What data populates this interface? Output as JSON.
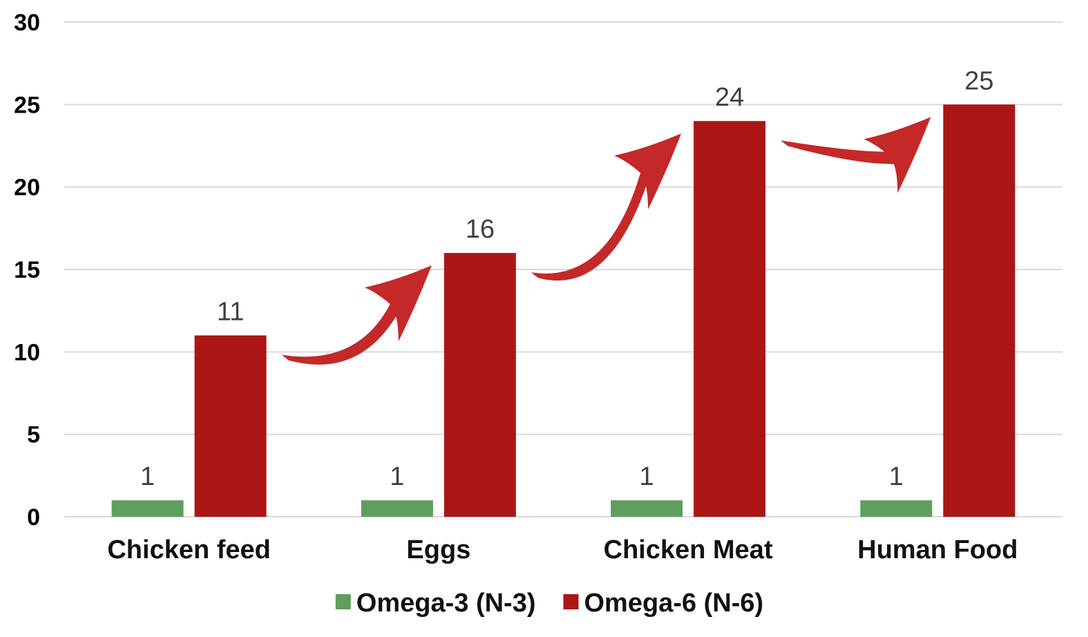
{
  "chart_data": {
    "type": "bar",
    "categories": [
      "Chicken feed",
      "Eggs",
      "Chicken Meat",
      "Human Food"
    ],
    "series": [
      {
        "name": "Omega-3 (N-3)",
        "values": [
          1,
          1,
          1,
          1
        ],
        "color": "#5f9e5f"
      },
      {
        "name": "Omega-6 (N-6)",
        "values": [
          11,
          16,
          24,
          25
        ],
        "color": "#ab1616"
      }
    ],
    "y_ticks": [
      0,
      5,
      10,
      15,
      20,
      25,
      30
    ],
    "ylim": [
      0,
      30
    ],
    "grid": true,
    "legend": "bottom-center",
    "data_labels": true,
    "annotations": [
      {
        "type": "curved-arrow",
        "from": "Chicken feed",
        "to": "Eggs",
        "color": "#c42828"
      },
      {
        "type": "curved-arrow",
        "from": "Eggs",
        "to": "Chicken Meat",
        "color": "#c42828"
      },
      {
        "type": "curved-arrow",
        "from": "Chicken Meat",
        "to": "Human Food",
        "color": "#c42828"
      }
    ]
  }
}
